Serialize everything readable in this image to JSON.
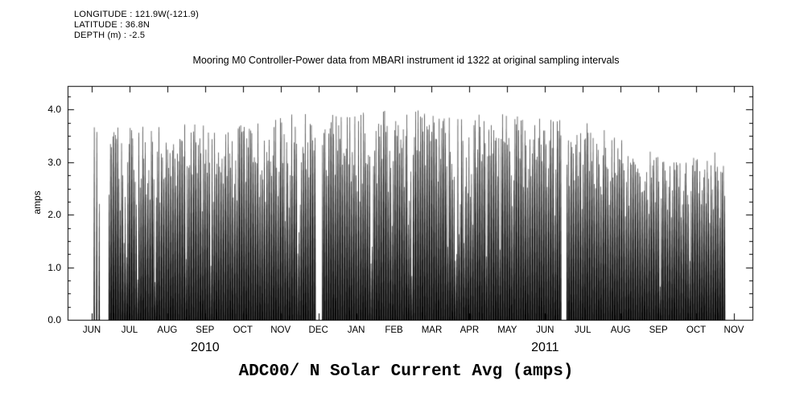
{
  "header": {
    "longitude": "LONGITUDE : 121.9W(-121.9)",
    "latitude": "LATITUDE : 36.8N",
    "depth": "DEPTH (m) : -2.5"
  },
  "title": "Mooring M0 Controller-Power data from MBARI instrument id 1322 at original sampling intervals",
  "bottom_title": "ADC00/ N Solar Current Avg (amps)",
  "chart_data": {
    "type": "line",
    "title": "Mooring M0 Controller-Power data from MBARI instrument id 1322 at original sampling intervals",
    "subtitle": "ADC00/ N Solar Current Avg (amps)",
    "ylabel": "amps",
    "xlabel": "",
    "ylim": [
      0,
      4.45
    ],
    "yticks": [
      0.0,
      1.0,
      2.0,
      3.0,
      4.0
    ],
    "ytick_labels": [
      "0.0",
      "1.0",
      "2.0",
      "3.0",
      "4.0"
    ],
    "x_tick_labels": [
      "JUN",
      "JUL",
      "AUG",
      "SEP",
      "OCT",
      "NOV",
      "DEC",
      "JAN",
      "FEB",
      "MAR",
      "APR",
      "MAY",
      "JUN",
      "JUL",
      "AUG",
      "SEP",
      "OCT",
      "NOV"
    ],
    "year_labels": [
      {
        "label": "2010",
        "month_index": 3
      },
      {
        "label": "2011",
        "month_index": 12
      }
    ],
    "grid": false,
    "legend": "none",
    "series_description": "Daily solar charging current cycles: value oscillates between 0 amps at night and a daily peak near the monthly envelope, drawn as dense black vertical spikes",
    "monthly_peak_envelope": {
      "months": [
        "JUN 2010",
        "JUL 2010",
        "AUG 2010",
        "SEP 2010",
        "OCT 2010",
        "NOV 2010",
        "DEC 2010",
        "JAN 2011",
        "FEB 2011",
        "MAR 2011",
        "APR 2011",
        "MAY 2011",
        "JUN 2011",
        "JUL 2011",
        "AUG 2011",
        "SEP 2011",
        "OCT 2011"
      ],
      "peak_amps": [
        3.7,
        3.7,
        3.75,
        3.7,
        3.9,
        3.95,
        3.9,
        4.05,
        4.05,
        4.0,
        3.95,
        3.85,
        3.8,
        3.7,
        3.3,
        3.0,
        3.2
      ]
    },
    "data_start_month_offset": 0.05,
    "data_end_month_offset": 16.8,
    "gaps_month_offsets": [
      [
        0.07,
        0.11
      ],
      [
        0.15,
        0.19
      ],
      [
        0.23,
        0.45
      ],
      [
        5.92,
        6.1
      ],
      [
        12.45,
        12.56
      ]
    ],
    "line_color": "#000000",
    "background": "#ffffff"
  }
}
